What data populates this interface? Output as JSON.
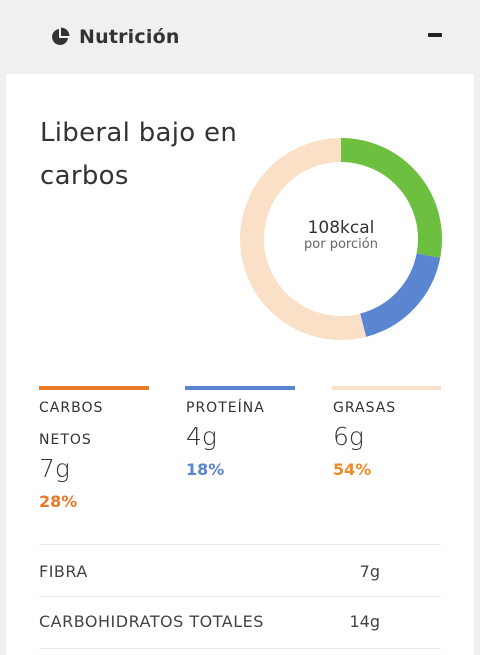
{
  "header": {
    "title": "Nutrición",
    "icon": "pie-chart-icon",
    "collapse_icon": "minus-icon"
  },
  "summary": {
    "diet_label": "Liberal bajo en carbos",
    "kcal": "108kcal",
    "kcal_sub": "por porción"
  },
  "chart_data": {
    "type": "pie",
    "style": "donut",
    "categories": [
      "Carbos netos",
      "Proteína",
      "Grasas"
    ],
    "values": [
      28,
      18,
      54
    ],
    "colors": [
      "#6cbf3f",
      "#5a85d1",
      "#fbe0c8"
    ]
  },
  "macros": [
    {
      "label_line1": "CARBOS",
      "label_line2": "NETOS",
      "grams": "7g",
      "pct": "28%",
      "bar_color": "#e87a28",
      "pct_color": "#e87a28"
    },
    {
      "label_line1": "PROTEÍNA",
      "label_line2": "",
      "grams": "4g",
      "pct": "18%",
      "bar_color": "#5a85d1",
      "pct_color": "#5a85d1"
    },
    {
      "label_line1": "GRASAS",
      "label_line2": "",
      "grams": "6g",
      "pct": "54%",
      "bar_color": "#fbe0c8",
      "pct_color": "#f08a24"
    }
  ],
  "details": [
    {
      "label": "FIBRA",
      "value": "7g"
    },
    {
      "label": "CARBOHIDRATOS TOTALES",
      "value": "14g"
    }
  ]
}
